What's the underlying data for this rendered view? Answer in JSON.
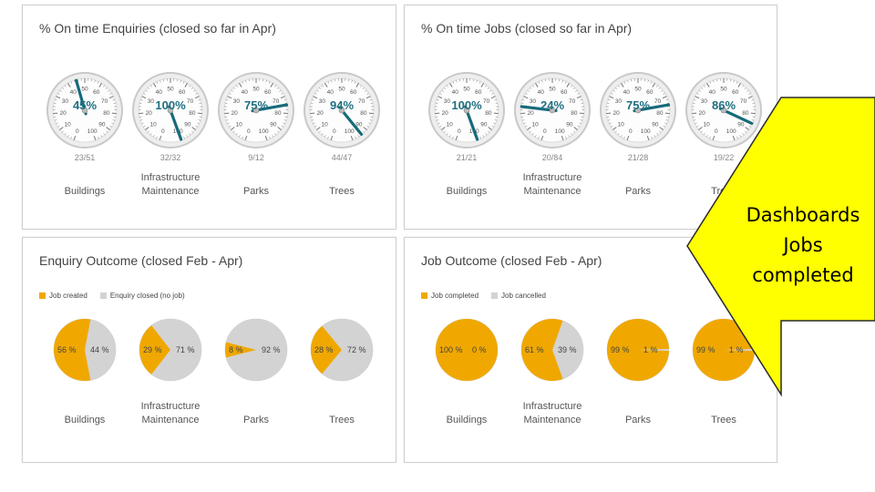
{
  "panels": {
    "enquiries": {
      "title": "% On time Enquiries (closed so far in Apr)",
      "items": [
        {
          "category": [
            "Buildings"
          ],
          "percent_label": "45%",
          "value": 45,
          "ratio": "23/51"
        },
        {
          "category": [
            "Infrastructure",
            "Maintenance"
          ],
          "percent_label": "100%",
          "value": 100,
          "ratio": "32/32"
        },
        {
          "category": [
            "Parks"
          ],
          "percent_label": "75%",
          "value": 75,
          "ratio": "9/12"
        },
        {
          "category": [
            "Trees"
          ],
          "percent_label": "94%",
          "value": 94,
          "ratio": "44/47"
        }
      ]
    },
    "jobs": {
      "title": "% On time Jobs (closed so far in Apr)",
      "items": [
        {
          "category": [
            "Buildings"
          ],
          "percent_label": "100%",
          "value": 100,
          "ratio": "21/21"
        },
        {
          "category": [
            "Infrastructure",
            "Maintenance"
          ],
          "percent_label": "24%",
          "value": 24,
          "ratio": "20/84"
        },
        {
          "category": [
            "Parks"
          ],
          "percent_label": "75%",
          "value": 75,
          "ratio": "21/28"
        },
        {
          "category": [
            "Trees"
          ],
          "percent_label": "86%",
          "value": 86,
          "ratio": "19/22"
        }
      ]
    },
    "enquiry_outcome": {
      "title": "Enquiry Outcome (closed Feb - Apr)",
      "legend": [
        {
          "label": "Job created",
          "color": "#f0a800"
        },
        {
          "label": "Enquiry closed (no job)",
          "color": "#d3d3d3"
        }
      ],
      "items": [
        {
          "category": [
            "Buildings"
          ],
          "a": 56,
          "b": 44,
          "a_label": "56 %",
          "b_label": "44 %"
        },
        {
          "category": [
            "Infrastructure",
            "Maintenance"
          ],
          "a": 29,
          "b": 71,
          "a_label": "29 %",
          "b_label": "71 %"
        },
        {
          "category": [
            "Parks"
          ],
          "a": 8,
          "b": 92,
          "a_label": "8 %",
          "b_label": "92 %"
        },
        {
          "category": [
            "Trees"
          ],
          "a": 28,
          "b": 72,
          "a_label": "28 %",
          "b_label": "72 %"
        }
      ]
    },
    "job_outcome": {
      "title": "Job Outcome (closed Feb - Apr)",
      "legend": [
        {
          "label": "Job completed",
          "color": "#f0a800"
        },
        {
          "label": "Job cancelled",
          "color": "#d3d3d3"
        }
      ],
      "items": [
        {
          "category": [
            "Buildings"
          ],
          "a": 100,
          "b": 0,
          "a_label": "100 %",
          "b_label": "0 %"
        },
        {
          "category": [
            "Infrastructure",
            "Maintenance"
          ],
          "a": 61,
          "b": 39,
          "a_label": "61 %",
          "b_label": "39 %"
        },
        {
          "category": [
            "Parks"
          ],
          "a": 99,
          "b": 1,
          "a_label": "99 %",
          "b_label": "1 %"
        },
        {
          "category": [
            "Trees"
          ],
          "a": 99,
          "b": 1,
          "a_label": "99 %",
          "b_label": "1 %"
        }
      ]
    }
  },
  "gauge_ticks": [
    "0",
    "10",
    "20",
    "30",
    "40",
    "50",
    "60",
    "70",
    "80",
    "90",
    "100"
  ],
  "callout": {
    "lines": [
      "Dashboards",
      "Jobs",
      "completed"
    ],
    "fill": "#ffff00",
    "stroke": "#2a2a2a"
  },
  "colors": {
    "needle": "#176a7a",
    "percent_text": "#1f6f80",
    "pie_a": "#f0a800",
    "pie_b": "#d3d3d3"
  }
}
